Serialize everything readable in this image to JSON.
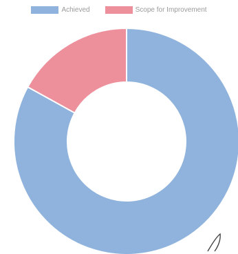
{
  "chart_data": {
    "type": "pie",
    "donut": true,
    "title": "",
    "categories": [
      "Achieved",
      "Scope for Improvement"
    ],
    "values": [
      83,
      17
    ],
    "colors": [
      "#8fb3dc",
      "#ee8f9c"
    ],
    "legend_position": "top"
  }
}
